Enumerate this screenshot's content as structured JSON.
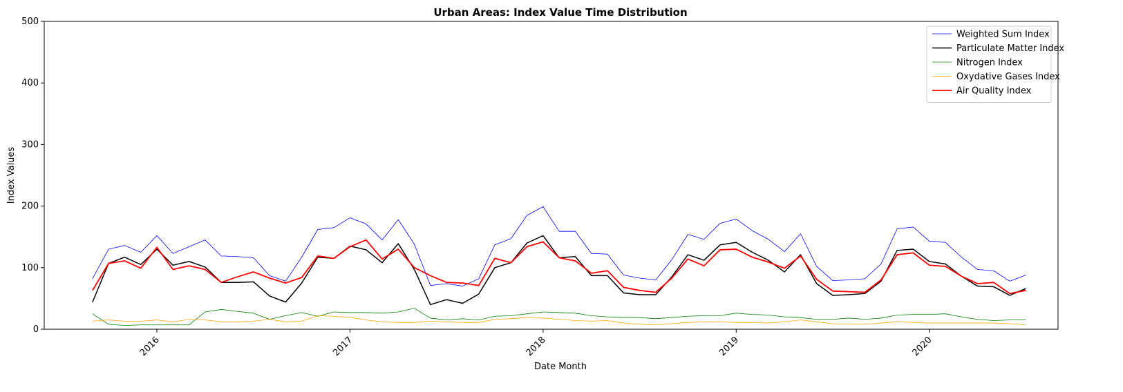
{
  "chart_data": {
    "type": "line",
    "title": "Urban Areas: Index Value Time Distribution",
    "x_label": "Date Month",
    "y_label": "Index Values",
    "x": [
      "2015-09",
      "2015-10",
      "2015-11",
      "2015-12",
      "2016-01",
      "2016-02",
      "2016-03",
      "2016-04",
      "2016-05",
      "2016-06",
      "2016-07",
      "2016-08",
      "2016-09",
      "2016-10",
      "2016-11",
      "2016-12",
      "2017-01",
      "2017-02",
      "2017-03",
      "2017-04",
      "2017-05",
      "2017-06",
      "2017-07",
      "2017-08",
      "2017-09",
      "2017-10",
      "2017-11",
      "2017-12",
      "2018-01",
      "2018-02",
      "2018-03",
      "2018-04",
      "2018-05",
      "2018-06",
      "2018-07",
      "2018-08",
      "2018-09",
      "2018-10",
      "2018-11",
      "2018-12",
      "2019-01",
      "2019-02",
      "2019-03",
      "2019-04",
      "2019-05",
      "2019-06",
      "2019-07",
      "2019-08",
      "2019-09",
      "2019-10",
      "2019-11",
      "2019-12",
      "2020-01",
      "2020-02",
      "2020-03",
      "2020-04",
      "2020-05",
      "2020-06",
      "2020-07"
    ],
    "series": [
      {
        "name": "Weighted Sum Index",
        "color": "#0000ff",
        "width": 0.8,
        "values": [
          82,
          130,
          136,
          125,
          152,
          123,
          134,
          145,
          119,
          118,
          116,
          87,
          78,
          117,
          162,
          165,
          181,
          171,
          145,
          178,
          138,
          71,
          74,
          70,
          82,
          137,
          147,
          185,
          199,
          159,
          159,
          123,
          122,
          88,
          83,
          80,
          113,
          154,
          146,
          172,
          179,
          160,
          146,
          126,
          155,
          102,
          79,
          80,
          82,
          106,
          163,
          166,
          143,
          141,
          117,
          97,
          95,
          78,
          88
        ]
      },
      {
        "name": "Particulate Matter Index",
        "color": "#000000",
        "width": 1.5,
        "values": [
          44,
          107,
          117,
          105,
          130,
          104,
          110,
          101,
          76,
          76,
          77,
          54,
          44,
          75,
          117,
          115,
          135,
          129,
          108,
          139,
          97,
          40,
          48,
          42,
          57,
          100,
          108,
          140,
          152,
          116,
          118,
          87,
          87,
          59,
          56,
          56,
          85,
          121,
          112,
          137,
          141,
          125,
          112,
          93,
          121,
          74,
          55,
          56,
          58,
          78,
          128,
          130,
          110,
          106,
          86,
          70,
          69,
          55,
          66
        ]
      },
      {
        "name": "Nitrogen Index",
        "color": "#008000",
        "width": 0.8,
        "values": [
          25,
          8,
          6,
          7,
          7,
          7,
          7,
          28,
          32,
          29,
          26,
          16,
          22,
          27,
          21,
          28,
          27,
          27,
          26,
          28,
          34,
          18,
          15,
          17,
          15,
          21,
          22,
          25,
          28,
          27,
          26,
          22,
          20,
          19,
          19,
          17,
          19,
          21,
          22,
          22,
          26,
          24,
          23,
          20,
          19,
          16,
          16,
          18,
          16,
          18,
          23,
          24,
          24,
          25,
          20,
          16,
          14,
          15,
          15
        ]
      },
      {
        "name": "Oxydative Gases Index",
        "color": "#ffa500",
        "width": 0.8,
        "values": [
          13,
          15,
          13,
          13,
          15,
          12,
          16,
          15,
          12,
          12,
          13,
          16,
          12,
          13,
          22,
          21,
          19,
          15,
          12,
          11,
          11,
          13,
          12,
          11,
          11,
          16,
          17,
          19,
          18,
          16,
          14,
          13,
          14,
          10,
          8,
          7,
          9,
          11,
          12,
          12,
          11,
          11,
          10,
          12,
          15,
          12,
          9,
          8,
          8,
          10,
          12,
          11,
          10,
          10,
          10,
          10,
          10,
          9,
          7
        ]
      },
      {
        "name": "Air Quality Index",
        "color": "#ff0000",
        "width": 1.8,
        "values": [
          63,
          107,
          111,
          99,
          133,
          97,
          103,
          97,
          76,
          85,
          93,
          83,
          75,
          84,
          119,
          115,
          134,
          145,
          114,
          130,
          100,
          87,
          76,
          75,
          71,
          115,
          108,
          134,
          142,
          116,
          111,
          91,
          95,
          68,
          63,
          60,
          83,
          114,
          103,
          129,
          130,
          117,
          109,
          99,
          119,
          81,
          62,
          61,
          60,
          80,
          121,
          124,
          104,
          102,
          86,
          74,
          76,
          58,
          63
        ]
      }
    ],
    "xlim": [
      "2015-06",
      "2020-09"
    ],
    "xticks": [
      {
        "value": "2016-01",
        "label": "2016"
      },
      {
        "value": "2017-01",
        "label": "2017"
      },
      {
        "value": "2018-01",
        "label": "2018"
      },
      {
        "value": "2019-01",
        "label": "2019"
      },
      {
        "value": "2020-01",
        "label": "2020"
      }
    ],
    "ylim": [
      0,
      500
    ],
    "yticks": [
      0,
      100,
      200,
      300,
      400,
      500
    ],
    "legend": "upper right",
    "grid": false
  }
}
